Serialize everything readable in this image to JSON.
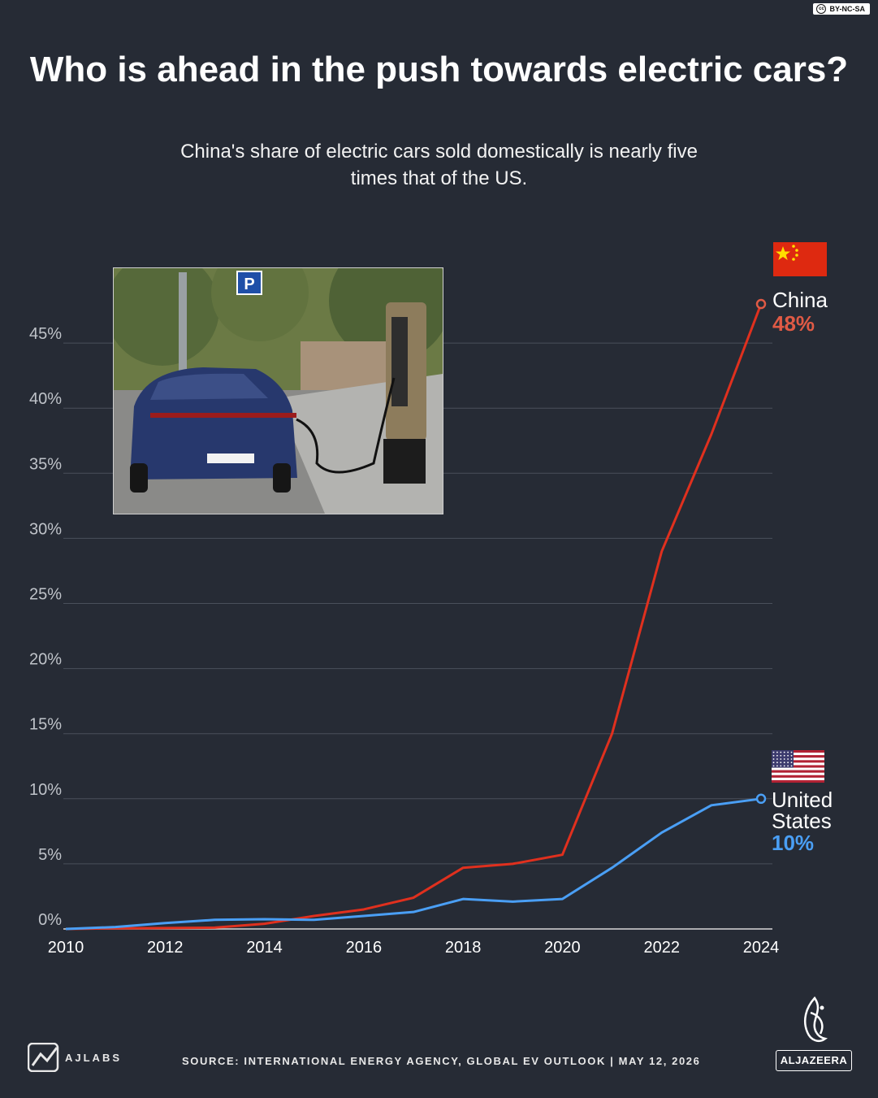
{
  "license": "BY-NC-SA",
  "header": {
    "title": "Who is ahead in the push towards electric cars?",
    "subtitle": "China's share of electric cars sold domestically is nearly five times that of the US."
  },
  "chart_data": {
    "type": "line",
    "x": [
      2010,
      2011,
      2012,
      2013,
      2014,
      2015,
      2016,
      2017,
      2018,
      2019,
      2020,
      2021,
      2022,
      2023,
      2024
    ],
    "x_ticks": [
      "2010",
      "2012",
      "2014",
      "2016",
      "2018",
      "2020",
      "2022",
      "2024"
    ],
    "y_ticks": [
      "0%",
      "5%",
      "10%",
      "15%",
      "20%",
      "25%",
      "30%",
      "35%",
      "40%",
      "45%"
    ],
    "ylim": [
      0,
      50
    ],
    "xlim": [
      2010,
      2024
    ],
    "grid": "horizontal",
    "series": [
      {
        "name": "China",
        "color": "#e0301e",
        "values": [
          0,
          0.05,
          0.07,
          0.1,
          0.4,
          1.0,
          1.5,
          2.4,
          4.7,
          5.0,
          5.7,
          15,
          29,
          38,
          48
        ],
        "end_label": "48%",
        "end_color": "#e05a45"
      },
      {
        "name": "United States",
        "color": "#4a9ff5",
        "values": [
          0,
          0.15,
          0.45,
          0.7,
          0.75,
          0.7,
          1.0,
          1.3,
          2.3,
          2.1,
          2.3,
          4.7,
          7.4,
          9.5,
          10
        ],
        "end_label": "10%",
        "end_color": "#4a9ff5"
      }
    ]
  },
  "labels": {
    "china_name": "China",
    "china_value": "48%",
    "us_name_line1": "United",
    "us_name_line2": "States",
    "us_value": "10%"
  },
  "footer": {
    "source": "SOURCE:  INTERNATIONAL ENERGY AGENCY, GLOBAL EV OUTLOOK  |  MAY 12, 2026",
    "ajlabs": "AJLABS",
    "brand": "ALJAZEERA"
  }
}
